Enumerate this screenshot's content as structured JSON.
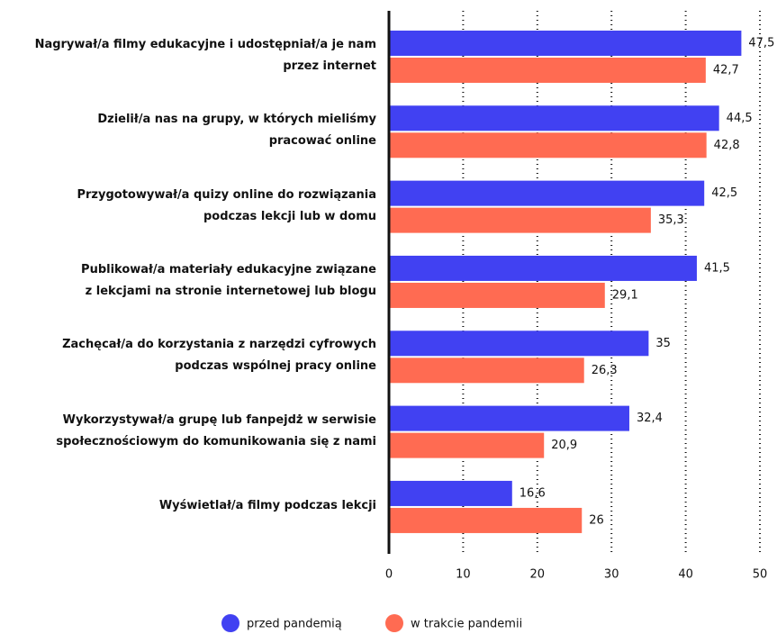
{
  "chart_data": {
    "type": "bar",
    "orientation": "horizontal",
    "categories": [
      "Nagrywał/a filmy edukacyjne i udostępniał/a je nam\nprzez internet",
      "Dzielił/a nas na grupy, w których mieliśmy\npracować online",
      "Przygotowywał/a quizy online do rozwiązania\npodczas lekcji lub w domu",
      "Publikował/a materiały edukacyjne związane\nz lekcjami na stronie internetowej lub blogu",
      "Zachęcał/a do korzystania z narzędzi cyfrowych\npodczas wspólnej pracy online",
      "Wykorzystywał/a grupę lub fanpejdż w serwisie\nspołecznościowym do komunikowania się z nami",
      "Wyświetlał/a filmy podczas lekcji"
    ],
    "series": [
      {
        "name": "przed pandemią",
        "color": "#4141f2",
        "values": [
          47.5,
          44.5,
          42.5,
          41.5,
          35,
          32.4,
          16.6
        ],
        "value_labels": [
          "47,5",
          "44,5",
          "42,5",
          "41,5",
          "35",
          "32,4",
          "16,6"
        ]
      },
      {
        "name": "w trakcie pandemii",
        "color": "#ff6b52",
        "values": [
          42.7,
          42.8,
          35.3,
          29.1,
          26.3,
          20.9,
          26
        ],
        "value_labels": [
          "42,7",
          "42,8",
          "35,3",
          "29,1",
          "26,3",
          "20,9",
          "26"
        ]
      }
    ],
    "xlim": [
      0,
      50
    ],
    "xticks": [
      0,
      10,
      20,
      30,
      40,
      50
    ],
    "grid": true,
    "legend": "bottom"
  }
}
